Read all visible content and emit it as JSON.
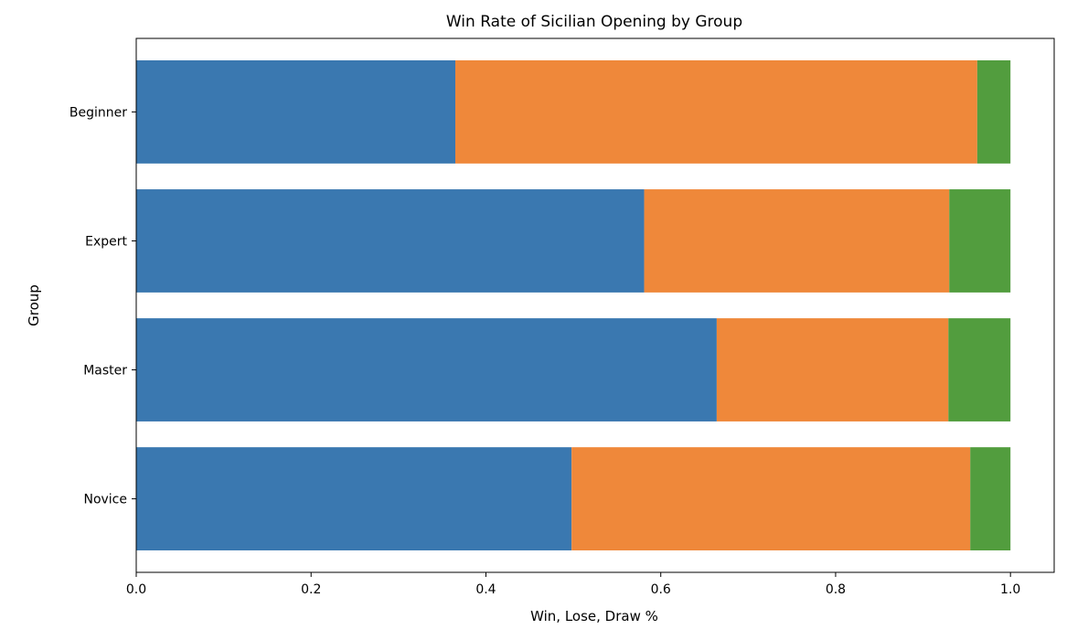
{
  "chart_data": {
    "type": "bar",
    "orientation": "horizontal",
    "stacked": true,
    "title": "Win Rate of Sicilian Opening by Group",
    "xlabel": "Win, Lose, Draw %",
    "ylabel": "Group",
    "categories": [
      "Beginner",
      "Expert",
      "Master",
      "Novice"
    ],
    "series": [
      {
        "color": "#3a78b0",
        "values": [
          0.365,
          0.581,
          0.664,
          0.498
        ]
      },
      {
        "color": "#ef883a",
        "values": [
          0.597,
          0.349,
          0.265,
          0.456
        ]
      },
      {
        "color": "#529d3e",
        "values": [
          0.038,
          0.07,
          0.071,
          0.046
        ]
      }
    ],
    "xlim": [
      0,
      1.05
    ],
    "xticks": [
      0.0,
      0.2,
      0.4,
      0.6,
      0.8,
      1.0
    ],
    "xtick_labels": [
      "0.0",
      "0.2",
      "0.4",
      "0.6",
      "0.8",
      "1.0"
    ],
    "grid": false,
    "legend": "none"
  }
}
